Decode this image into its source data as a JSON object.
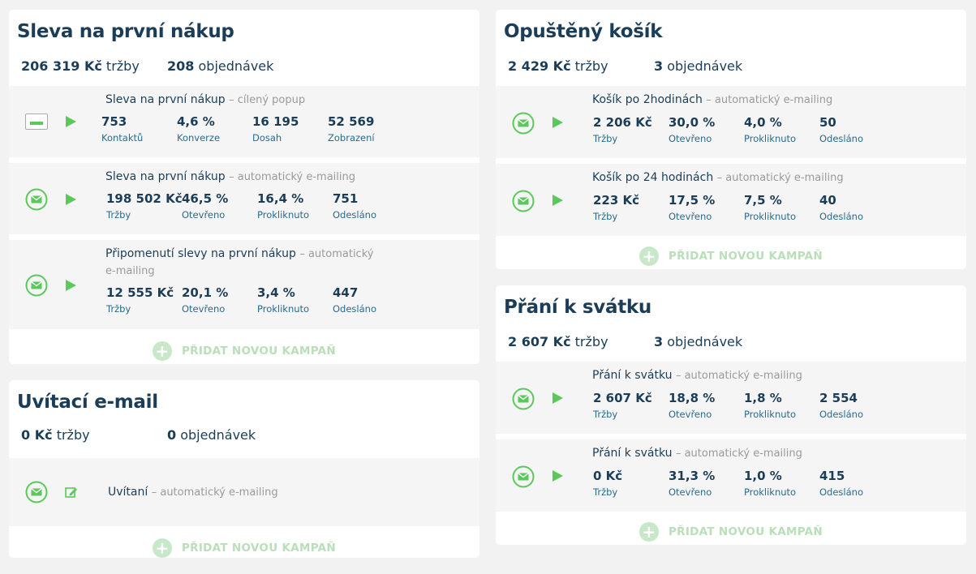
{
  "left": {
    "sleva": {
      "title": "Sleva na první nákup",
      "revenue_value": "206 319 Kč",
      "revenue_label": "tržby",
      "orders_value": "208",
      "orders_label": "objednávek",
      "rows": [
        {
          "name": "Sleva na první nákup",
          "type": "– cílený popup",
          "icon": "popup-icon",
          "stats": [
            {
              "v": "753",
              "l": "Kontaktů"
            },
            {
              "v": "4,6 %",
              "l": "Konverze"
            },
            {
              "v": "16 195",
              "l": "Dosah"
            },
            {
              "v": "52 569",
              "l": "Zobrazení"
            }
          ]
        },
        {
          "name": "Sleva na první nákup",
          "type": "– automatický e-mailing",
          "icon": "email-icon",
          "stats": [
            {
              "v": "198 502 Kč",
              "l": "Tržby"
            },
            {
              "v": "46,5 %",
              "l": "Otevřeno"
            },
            {
              "v": "16,4 %",
              "l": "Prokliknuto"
            },
            {
              "v": "751",
              "l": "Odesláno"
            }
          ]
        },
        {
          "name": "Připomenutí slevy na první nákup",
          "type": "– automatický e-mailing",
          "icon": "email-icon",
          "stats": [
            {
              "v": "12 555 Kč",
              "l": "Tržby"
            },
            {
              "v": "20,1 %",
              "l": "Otevřeno"
            },
            {
              "v": "3,4 %",
              "l": "Prokliknuto"
            },
            {
              "v": "447",
              "l": "Odesláno"
            }
          ]
        }
      ],
      "add_label": "PŘIDAT NOVOU KAMPAŇ"
    },
    "uvitaci": {
      "title": "Uvítací e-mail",
      "revenue_value": "0 Kč",
      "revenue_label": "tržby",
      "orders_value": "0",
      "orders_label": "objednávek",
      "row": {
        "name": "Uvítaní",
        "type": "– automatický e-mailing"
      },
      "add_label": "PŘIDAT NOVOU KAMPAŇ"
    }
  },
  "right": {
    "kosik": {
      "title": "Opuštěný košík",
      "revenue_value": "2 429 Kč",
      "revenue_label": "tržby",
      "orders_value": "3",
      "orders_label": "objednávek",
      "rows": [
        {
          "name": "Košík po 2hodinách",
          "type": "– automatický e-mailing",
          "stats": [
            {
              "v": "2 206 Kč",
              "l": "Tržby"
            },
            {
              "v": "30,0 %",
              "l": "Otevřeno"
            },
            {
              "v": "4,0 %",
              "l": "Prokliknuto"
            },
            {
              "v": "50",
              "l": "Odesláno"
            }
          ]
        },
        {
          "name": "Košík po 24 hodinách",
          "type": "– automatický e-mailing",
          "stats": [
            {
              "v": "223 Kč",
              "l": "Tržby"
            },
            {
              "v": "17,5 %",
              "l": "Otevřeno"
            },
            {
              "v": "7,5 %",
              "l": "Prokliknuto"
            },
            {
              "v": "40",
              "l": "Odesláno"
            }
          ]
        }
      ],
      "add_label": "PŘIDAT NOVOU KAMPAŇ"
    },
    "prani": {
      "title": "Přání k svátku",
      "revenue_value": "2 607 Kč",
      "revenue_label": "tržby",
      "orders_value": "3",
      "orders_label": "objednávek",
      "rows": [
        {
          "name": "Přání k svátku",
          "type": "– automatický e-mailing",
          "stats": [
            {
              "v": "2 607 Kč",
              "l": "Tržby"
            },
            {
              "v": "18,8 %",
              "l": "Otevřeno"
            },
            {
              "v": "1,8 %",
              "l": "Prokliknuto"
            },
            {
              "v": "2 554",
              "l": "Odesláno"
            }
          ]
        },
        {
          "name": "Přání k svátku",
          "type": "– automatický e-mailing",
          "stats": [
            {
              "v": "0 Kč",
              "l": "Tržby"
            },
            {
              "v": "31,3 %",
              "l": "Otevřeno"
            },
            {
              "v": "1,0 %",
              "l": "Prokliknuto"
            },
            {
              "v": "415",
              "l": "Odesláno"
            }
          ]
        }
      ],
      "add_label": "PŘIDAT NOVOU KAMPAŇ"
    }
  },
  "colors": {
    "accent_green": "#5cc85c",
    "title_navy": "#1b3d57",
    "label_blue": "#2a6a8c",
    "muted_gray": "#9a9a9a"
  }
}
